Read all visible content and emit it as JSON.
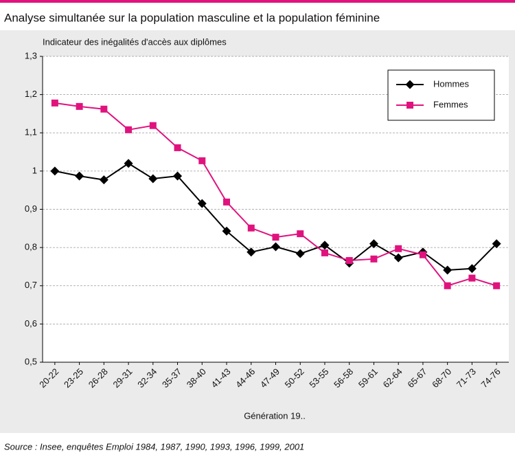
{
  "chart_data": {
    "type": "line",
    "title": "Analyse simultanée sur la population masculine et la population féminine",
    "y_label": "Indicateur des inégalités d'accès aux diplômes",
    "x_label": "Génération 19..",
    "source": "Source : Insee, enquêtes Emploi 1984, 1987, 1990, 1993, 1996, 1999, 2001",
    "categories": [
      "20-22",
      "23-25",
      "26-28",
      "29-31",
      "32-34",
      "35-37",
      "38-40",
      "41-43",
      "44-46",
      "47-49",
      "50-52",
      "53-55",
      "56-58",
      "59-61",
      "62-64",
      "65-67",
      "68-70",
      "71-73",
      "74-76"
    ],
    "series": [
      {
        "name": "Hommes",
        "color": "#000000",
        "marker": "diamond",
        "values": [
          1.0,
          0.987,
          0.977,
          1.02,
          0.98,
          0.987,
          0.915,
          0.843,
          0.788,
          0.802,
          0.784,
          0.806,
          0.759,
          0.81,
          0.773,
          0.788,
          0.741,
          0.745,
          0.81
        ]
      },
      {
        "name": "Femmes",
        "color": "#e0137e",
        "marker": "square",
        "values": [
          1.178,
          1.169,
          1.162,
          1.108,
          1.119,
          1.061,
          1.027,
          0.919,
          0.851,
          0.827,
          0.836,
          0.786,
          0.766,
          0.77,
          0.797,
          0.781,
          0.7,
          0.72,
          0.7
        ]
      }
    ],
    "ylim": [
      0.5,
      1.3
    ],
    "yticks": [
      {
        "value": 0.5,
        "label": "0,5"
      },
      {
        "value": 0.6,
        "label": "0,6"
      },
      {
        "value": 0.7,
        "label": "0,7"
      },
      {
        "value": 0.8,
        "label": "0,8"
      },
      {
        "value": 0.9,
        "label": "0,9"
      },
      1,
      {
        "value": 1.1,
        "label": "1,1"
      },
      {
        "value": 1.2,
        "label": "1,2"
      },
      {
        "value": 1.3,
        "label": "1,3"
      }
    ],
    "grid": true,
    "legend": "upper right"
  }
}
